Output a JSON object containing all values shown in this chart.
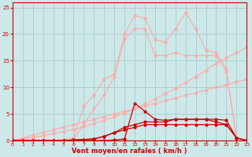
{
  "xlabel": "Vent moyen/en rafales ( km/h )",
  "bg_color": "#cce8e8",
  "grid_color": "#aacccc",
  "xlim": [
    0,
    23
  ],
  "ylim": [
    0,
    26
  ],
  "yticks": [
    0,
    5,
    10,
    15,
    20,
    25
  ],
  "xticks": [
    0,
    1,
    2,
    3,
    4,
    5,
    6,
    7,
    8,
    9,
    10,
    11,
    12,
    13,
    14,
    15,
    16,
    17,
    18,
    19,
    20,
    21,
    22,
    23
  ],
  "x": [
    0,
    1,
    2,
    3,
    4,
    5,
    6,
    7,
    8,
    9,
    10,
    11,
    12,
    13,
    14,
    15,
    16,
    17,
    18,
    19,
    20,
    21,
    22,
    23
  ],
  "line_diag1": [
    0,
    0.5,
    1.0,
    1.5,
    2.0,
    2.5,
    3.0,
    3.5,
    4.0,
    4.5,
    5.0,
    5.5,
    6.0,
    6.5,
    7.0,
    7.5,
    8.0,
    8.5,
    9.0,
    9.5,
    10.0,
    10.5,
    11.0,
    11.5
  ],
  "line_diag2": [
    0,
    0.3,
    0.6,
    0.9,
    1.3,
    1.7,
    2.1,
    2.6,
    3.2,
    3.8,
    4.5,
    5.2,
    6.0,
    6.9,
    7.8,
    8.8,
    9.8,
    10.9,
    12.0,
    13.2,
    14.5,
    15.5,
    16.5,
    17.5
  ],
  "line_pink_jagged": [
    0,
    0,
    0,
    0,
    0,
    0.1,
    0.5,
    6.5,
    8.5,
    11.5,
    12.5,
    20.0,
    23.5,
    23.0,
    19.0,
    18.5,
    21.0,
    24.0,
    21.0,
    17.0,
    16.5,
    13.5,
    0.5,
    0
  ],
  "line_pink_smooth": [
    0,
    0,
    0,
    0,
    0,
    0.1,
    0.3,
    3.0,
    6.0,
    8.5,
    12.0,
    19.0,
    21.0,
    21.0,
    16.0,
    16.0,
    16.5,
    16.0,
    16.0,
    16.0,
    16.0,
    13.0,
    0.5,
    0
  ],
  "line_red_peak": [
    0,
    0,
    0,
    0,
    0,
    0,
    0,
    0,
    0,
    0,
    0.1,
    0.3,
    7.0,
    5.5,
    4.0,
    3.8,
    4.0,
    4.0,
    4.0,
    4.0,
    4.0,
    3.8,
    0.5,
    0
  ],
  "line_red_flat": [
    0,
    0,
    0,
    0,
    0,
    0,
    0.1,
    0.2,
    0.3,
    0.8,
    1.5,
    2.5,
    3.0,
    3.5,
    3.5,
    3.5,
    4.0,
    4.0,
    4.0,
    4.0,
    3.5,
    3.0,
    0.5,
    0
  ],
  "line_red_ramp": [
    0,
    0,
    0,
    0,
    0,
    0,
    0.1,
    0.2,
    0.3,
    0.8,
    1.5,
    2.0,
    2.5,
    3.0,
    3.0,
    3.0,
    3.0,
    3.0,
    3.0,
    3.0,
    3.0,
    3.0,
    0.5,
    0
  ],
  "color_dark": "#cc0000",
  "color_light": "#ffaaaa"
}
